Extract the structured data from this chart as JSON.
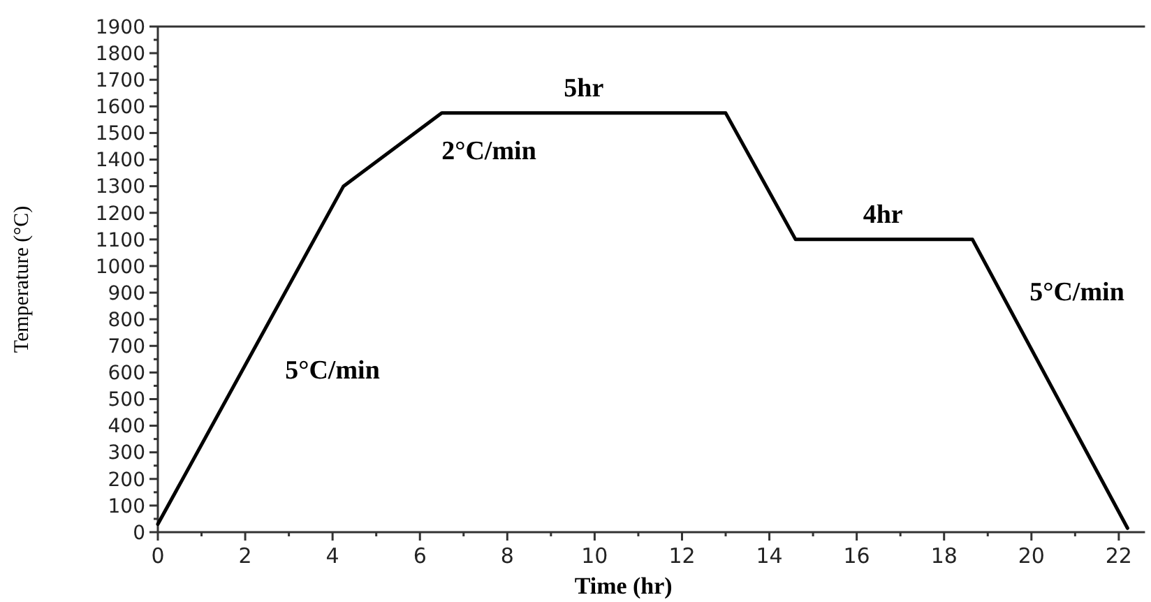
{
  "chart_data": {
    "type": "line",
    "xlabel": "Time (hr)",
    "ylabel": "Temperature (°C)",
    "x": [
      0,
      4.25,
      6.5,
      13,
      14.6,
      18.65,
      22.2
    ],
    "series": [
      {
        "color": "#000000",
        "values": [
          30,
          1300,
          1575,
          1575,
          1100,
          1100,
          15
        ]
      }
    ],
    "xlim": [
      0,
      22.6
    ],
    "xticks": [
      0,
      2,
      4,
      6,
      8,
      10,
      12,
      14,
      16,
      18,
      20,
      22
    ],
    "ylim": [
      0,
      1900
    ],
    "yticks": [
      0,
      100,
      200,
      300,
      400,
      500,
      600,
      700,
      800,
      900,
      1000,
      1100,
      1200,
      1300,
      1400,
      1500,
      1600,
      1700,
      1800,
      1900
    ],
    "annotations": [
      {
        "text": "5hr",
        "x": 9.75,
        "y": 1575
      },
      "2°C/min",
      "5°C/min",
      {
        "text": "4hr",
        "x": 16.6,
        "y": 1100
      },
      "5°C/min"
    ],
    "grid": false,
    "marker": "none",
    "line_style": "solid"
  }
}
